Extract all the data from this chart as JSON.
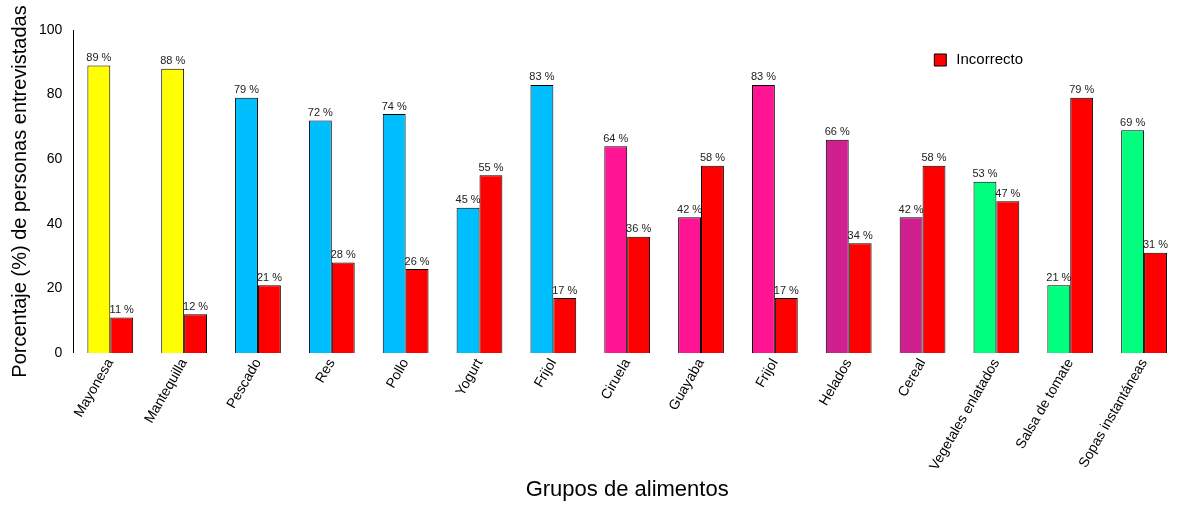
{
  "chart_data": {
    "type": "bar",
    "xlabel": "Grupos de alimentos",
    "ylabel": "Porcentaje (%) de personas entrevistadas",
    "categories": [
      "Mayonesa",
      "Mantequilla",
      "Pescado",
      "Res",
      "Pollo",
      "Yogurt",
      "Frijol",
      "Ciruela",
      "Guayaba",
      "Frijol",
      "Helados",
      "Cereal",
      "Vegetales enlatados",
      "Salsa de tomate",
      "Sopas instantáneas"
    ],
    "series": [
      {
        "colors": [
          "#ffff00",
          "#ffff00",
          "#00bfff",
          "#00bfff",
          "#00bfff",
          "#00bfff",
          "#00bfff",
          "#ff1493",
          "#ff1493",
          "#ff1493",
          "#d02090",
          "#d02090",
          "#00ff7f",
          "#00ff7f",
          "#00ff7f"
        ],
        "values": [
          89,
          88,
          79,
          72,
          74,
          45,
          83,
          64,
          42,
          83,
          66,
          42,
          53,
          21,
          69
        ],
        "value_labels": [
          "89 %",
          "88 %",
          "79 %",
          "72 %",
          "74 %",
          "45 %",
          "83 %",
          "64 %",
          "42 %",
          "83 %",
          "66 %",
          "42 %",
          "53 %",
          "21 %",
          "69 %"
        ]
      },
      {
        "name": "Incorrecto",
        "color": "#ff0000",
        "values": [
          11,
          12,
          21,
          28,
          26,
          55,
          17,
          36,
          58,
          17,
          34,
          58,
          47,
          79,
          31
        ],
        "value_labels": [
          "11 %",
          "12 %",
          "21 %",
          "28 %",
          "26 %",
          "55 %",
          "17 %",
          "36 %",
          "58 %",
          "17 %",
          "34 %",
          "58 %",
          "47 %",
          "79 %",
          "31 %"
        ]
      }
    ],
    "ylim": [
      0,
      100
    ],
    "yticks": [
      0,
      20,
      40,
      60,
      80,
      100
    ],
    "grid": false,
    "legend": "top right"
  }
}
